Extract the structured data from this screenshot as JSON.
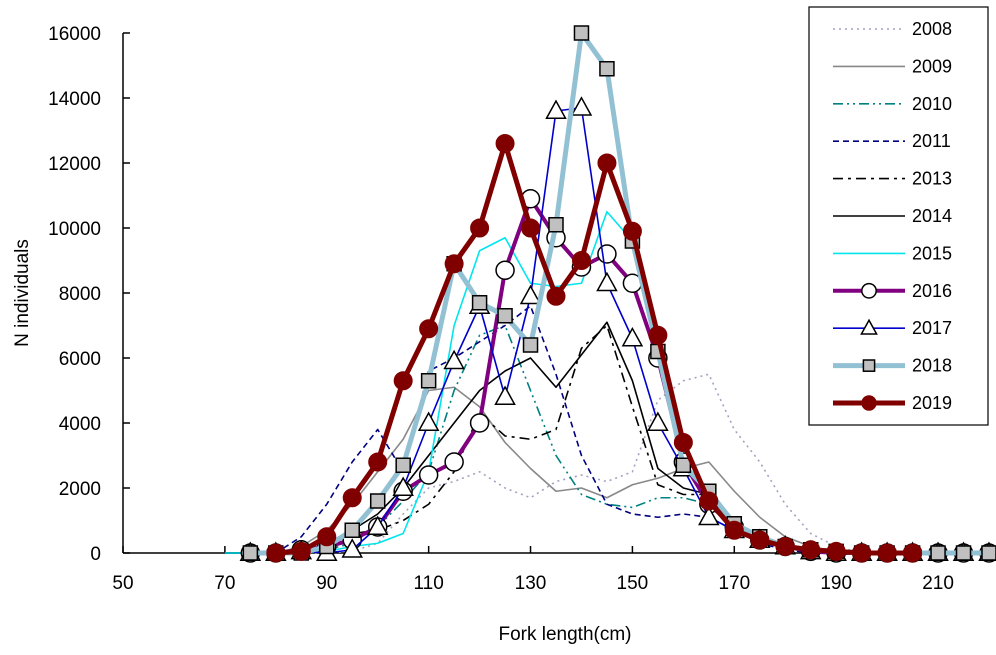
{
  "chart_data": {
    "type": "line",
    "title": "",
    "xlabel": "Fork length(cm)",
    "ylabel": "N individuals",
    "xlim": [
      50,
      220
    ],
    "ylim": [
      0,
      16000
    ],
    "x_ticks": [
      50,
      70,
      90,
      110,
      130,
      150,
      170,
      190,
      210
    ],
    "y_ticks": [
      0,
      2000,
      4000,
      6000,
      8000,
      10000,
      12000,
      14000,
      16000
    ],
    "grid": false,
    "legend_position": "right",
    "x": [
      70,
      75,
      80,
      85,
      90,
      95,
      100,
      105,
      110,
      115,
      120,
      125,
      130,
      135,
      140,
      145,
      150,
      155,
      160,
      165,
      170,
      175,
      180,
      185,
      190,
      195,
      200,
      205,
      210,
      215,
      220
    ],
    "series": [
      {
        "name": "2008",
        "color": "#a6a0c0",
        "style": "dotted",
        "marker": "none",
        "values": [
          0,
          0,
          0,
          0,
          0,
          50,
          300,
          1200,
          2000,
          2200,
          2500,
          2000,
          1700,
          2200,
          2400,
          2200,
          2500,
          4700,
          5300,
          5500,
          3800,
          2800,
          1500,
          600,
          200,
          0,
          0,
          0,
          0,
          0,
          0
        ]
      },
      {
        "name": "2009",
        "color": "#888888",
        "style": "solid",
        "marker": "none",
        "values": [
          0,
          0,
          0,
          200,
          700,
          1500,
          2500,
          3500,
          5000,
          5100,
          4500,
          3400,
          2600,
          1900,
          2000,
          1700,
          2100,
          2300,
          2600,
          2800,
          1900,
          1100,
          500,
          200,
          50,
          0,
          0,
          0,
          0,
          0,
          0
        ]
      },
      {
        "name": "2010",
        "color": "#008080",
        "style": "dashdotdot",
        "marker": "none",
        "values": [
          0,
          0,
          0,
          0,
          100,
          300,
          800,
          1600,
          2500,
          5000,
          6700,
          7000,
          5000,
          3000,
          1800,
          1500,
          1400,
          1700,
          1700,
          1500,
          900,
          400,
          150,
          50,
          0,
          0,
          0,
          0,
          0,
          0,
          0
        ]
      },
      {
        "name": "2011",
        "color": "#000080",
        "style": "dashed",
        "marker": "none",
        "values": [
          0,
          0,
          0,
          500,
          1500,
          2800,
          3800,
          2500,
          5600,
          6000,
          6500,
          7000,
          7600,
          5500,
          3000,
          1500,
          1200,
          1100,
          1200,
          1100,
          700,
          300,
          100,
          0,
          0,
          0,
          0,
          0,
          0,
          0,
          0
        ]
      },
      {
        "name": "2013",
        "color": "#000000",
        "style": "dashdot",
        "marker": "none",
        "values": [
          0,
          0,
          0,
          0,
          300,
          600,
          700,
          1000,
          1500,
          2500,
          4300,
          3600,
          3500,
          3800,
          6300,
          7000,
          4500,
          2100,
          1800,
          1800,
          900,
          400,
          200,
          50,
          0,
          0,
          0,
          0,
          0,
          0,
          0
        ]
      },
      {
        "name": "2014",
        "color": "#000000",
        "style": "solid",
        "marker": "none",
        "values": [
          0,
          0,
          0,
          0,
          200,
          700,
          1200,
          2000,
          3000,
          4000,
          5000,
          5600,
          6000,
          5100,
          6100,
          7100,
          5300,
          2600,
          2000,
          1800,
          800,
          400,
          200,
          50,
          0,
          0,
          0,
          0,
          0,
          0,
          0
        ]
      },
      {
        "name": "2015",
        "color": "#00e5ee",
        "style": "solid",
        "marker": "none",
        "values": [
          0,
          0,
          0,
          0,
          50,
          200,
          300,
          600,
          2500,
          7000,
          9300,
          9700,
          8300,
          8200,
          8300,
          10500,
          9600,
          6000,
          3300,
          1800,
          900,
          400,
          150,
          50,
          0,
          0,
          0,
          0,
          0,
          0,
          0
        ]
      },
      {
        "name": "2016",
        "color": "#800080",
        "style": "solid",
        "marker": "circle",
        "width": 4,
        "values": [
          null,
          0,
          0,
          100,
          200,
          400,
          800,
          1900,
          2400,
          2800,
          4000,
          8700,
          10900,
          9700,
          8800,
          9200,
          8300,
          6000,
          2800,
          1500,
          800,
          400,
          200,
          50,
          0,
          0,
          0,
          0,
          0,
          0,
          0
        ]
      },
      {
        "name": "2017",
        "color": "#0000cc",
        "style": "solid",
        "marker": "triangle",
        "values": [
          null,
          0,
          0,
          50,
          0,
          100,
          800,
          2000,
          4000,
          5900,
          7600,
          4800,
          7900,
          13600,
          13700,
          8300,
          6600,
          4000,
          2600,
          1100,
          700,
          400,
          200,
          50,
          0,
          0,
          0,
          0,
          0,
          0,
          0
        ]
      },
      {
        "name": "2018",
        "color": "#93c1d4",
        "style": "solid",
        "marker": "square",
        "width": 5,
        "values": [
          null,
          0,
          0,
          0,
          200,
          700,
          1600,
          2700,
          5300,
          8900,
          7700,
          7300,
          6400,
          10100,
          16000,
          14900,
          9600,
          6200,
          2700,
          1900,
          900,
          500,
          200,
          100,
          50,
          0,
          0,
          0,
          0,
          0,
          0
        ]
      },
      {
        "name": "2019",
        "color": "#800000",
        "style": "solid",
        "marker": "circle-filled",
        "width": 5,
        "values": [
          null,
          null,
          0,
          50,
          500,
          1700,
          2800,
          5300,
          6900,
          8900,
          10000,
          12600,
          10000,
          7900,
          9000,
          12000,
          9900,
          6700,
          3400,
          1600,
          700,
          400,
          200,
          100,
          50,
          0,
          0,
          0,
          null,
          null,
          null
        ]
      }
    ]
  }
}
